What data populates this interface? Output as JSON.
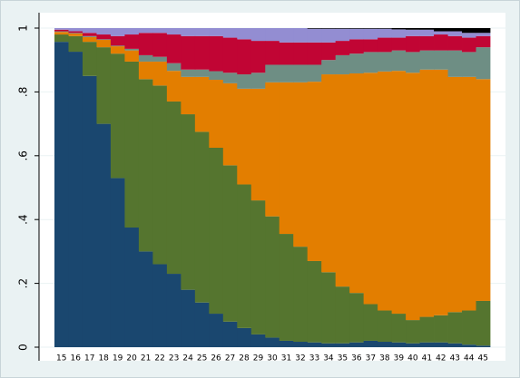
{
  "chart_data": {
    "type": "bar",
    "stacked": true,
    "grid": true,
    "categories": [
      15,
      16,
      17,
      18,
      19,
      20,
      21,
      22,
      23,
      24,
      25,
      26,
      27,
      28,
      29,
      30,
      31,
      32,
      33,
      34,
      35,
      36,
      37,
      38,
      39,
      40,
      41,
      42,
      43,
      44,
      45
    ],
    "ylim": [
      0,
      1
    ],
    "yticks": [
      0,
      {
        "value": 0.2,
        "label": ".2"
      },
      {
        "value": 0.4,
        "label": ".4"
      },
      {
        "value": 0.6,
        "label": ".6"
      },
      {
        "value": 0.8,
        "label": ".8"
      },
      1
    ],
    "series": [
      {
        "color": "#1a476f",
        "values": [
          0.957,
          0.926,
          0.85,
          0.7,
          0.53,
          0.375,
          0.3,
          0.26,
          0.23,
          0.18,
          0.14,
          0.105,
          0.08,
          0.06,
          0.04,
          0.03,
          0.02,
          0.017,
          0.015,
          0.012,
          0.012,
          0.015,
          0.02,
          0.017,
          0.015,
          0.012,
          0.015,
          0.015,
          0.012,
          0.008,
          0.005
        ]
      },
      {
        "color": "#55752f",
        "values": [
          0.023,
          0.049,
          0.107,
          0.24,
          0.39,
          0.52,
          0.54,
          0.56,
          0.54,
          0.55,
          0.535,
          0.52,
          0.49,
          0.45,
          0.42,
          0.38,
          0.335,
          0.298,
          0.255,
          0.223,
          0.178,
          0.155,
          0.115,
          0.098,
          0.09,
          0.073,
          0.08,
          0.085,
          0.098,
          0.107,
          0.14
        ]
      },
      {
        "color": "#e37e00",
        "values": [
          0.008,
          0.008,
          0.015,
          0.023,
          0.023,
          0.035,
          0.055,
          0.075,
          0.096,
          0.117,
          0.172,
          0.213,
          0.257,
          0.3,
          0.35,
          0.42,
          0.475,
          0.515,
          0.562,
          0.62,
          0.665,
          0.688,
          0.725,
          0.749,
          0.761,
          0.775,
          0.775,
          0.77,
          0.737,
          0.732,
          0.695
        ]
      },
      {
        "color": "#6e8e84",
        "values": [
          0.002,
          0.002,
          0.003,
          0.002,
          0.002,
          0.005,
          0.02,
          0.015,
          0.024,
          0.023,
          0.023,
          0.027,
          0.033,
          0.045,
          0.05,
          0.055,
          0.055,
          0.055,
          0.053,
          0.045,
          0.06,
          0.062,
          0.065,
          0.061,
          0.064,
          0.065,
          0.06,
          0.06,
          0.083,
          0.078,
          0.1
        ]
      },
      {
        "color": "#c10534",
        "values": [
          0.005,
          0.005,
          0.01,
          0.015,
          0.03,
          0.045,
          0.07,
          0.075,
          0.09,
          0.105,
          0.105,
          0.11,
          0.11,
          0.11,
          0.1,
          0.075,
          0.07,
          0.07,
          0.07,
          0.055,
          0.045,
          0.045,
          0.04,
          0.045,
          0.04,
          0.05,
          0.045,
          0.05,
          0.045,
          0.045,
          0.035
        ]
      },
      {
        "color": "#938dd2",
        "values": [
          0.005,
          0.01,
          0.015,
          0.02,
          0.025,
          0.02,
          0.015,
          0.015,
          0.02,
          0.025,
          0.025,
          0.025,
          0.03,
          0.035,
          0.04,
          0.04,
          0.045,
          0.045,
          0.043,
          0.043,
          0.038,
          0.033,
          0.033,
          0.028,
          0.026,
          0.02,
          0.02,
          0.01,
          0.015,
          0.015,
          0.01
        ]
      },
      {
        "color": "#000000",
        "values": [
          0,
          0,
          0,
          0,
          0,
          0,
          0,
          0,
          0,
          0,
          0,
          0,
          0,
          0,
          0,
          0,
          0,
          0,
          0.002,
          0.002,
          0.002,
          0.002,
          0.002,
          0.002,
          0.004,
          0.005,
          0.005,
          0.01,
          0.01,
          0.015,
          0.015
        ]
      }
    ]
  }
}
